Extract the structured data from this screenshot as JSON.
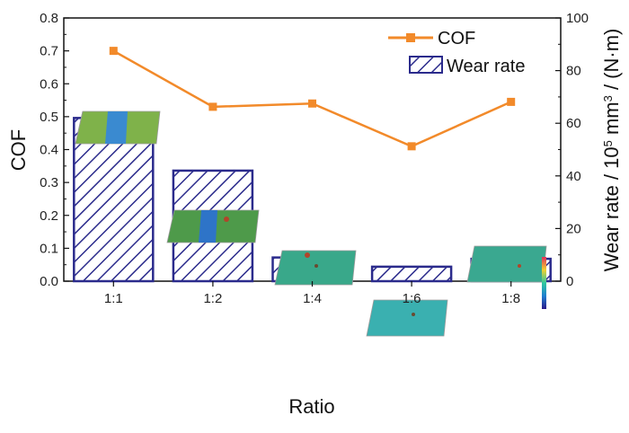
{
  "chart_data": {
    "type": "bar+line",
    "categories": [
      "1:1",
      "1:2",
      "1:4",
      "1:6",
      "1:8"
    ],
    "series": [
      {
        "name": "COF",
        "type": "line",
        "axis": "left",
        "color": "#F28A2A",
        "values": [
          0.7,
          0.53,
          0.54,
          0.41,
          0.545
        ]
      },
      {
        "name": "Wear rate",
        "type": "bar",
        "axis": "right",
        "color": "#2B2B8C",
        "values": [
          62,
          42,
          9,
          5.5,
          8.5
        ]
      }
    ],
    "xlabel": "Ratio",
    "ylabel_left": "COF",
    "ylabel_right_parts": {
      "a": "Wear rate / 10",
      "sup1": "5",
      "b": " mm",
      "sup2": "3",
      "c": " / (N·m)"
    },
    "ylim_left": [
      0,
      0.8
    ],
    "ylim_right": [
      0,
      100
    ],
    "yticks_left": [
      "0.0",
      "0.1",
      "0.2",
      "0.3",
      "0.4",
      "0.5",
      "0.6",
      "0.7",
      "0.8"
    ],
    "yticks_right": [
      "0",
      "20",
      "40",
      "60",
      "80",
      "100"
    ],
    "legend_position": "top-right",
    "insets": "3D wear-track surface images above each bar"
  }
}
